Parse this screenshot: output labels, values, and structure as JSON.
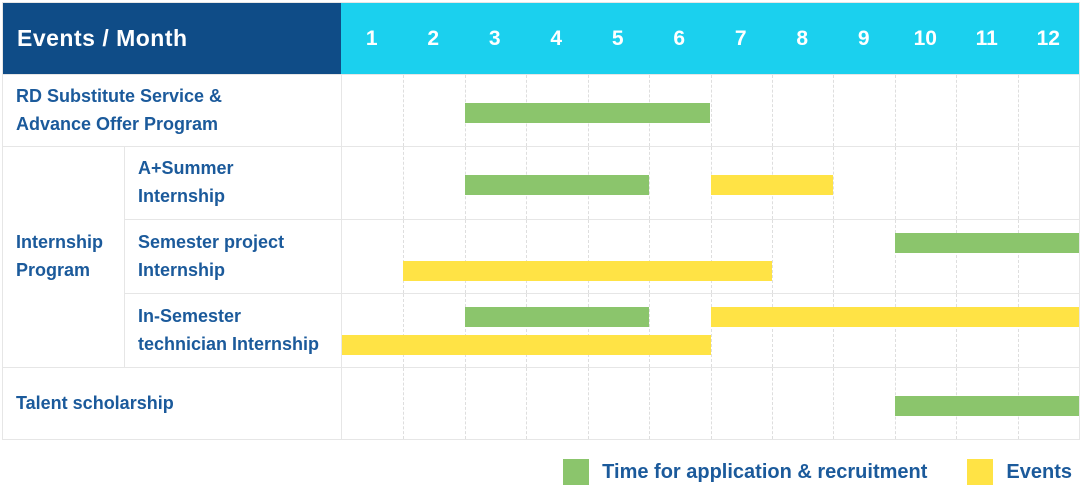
{
  "header": {
    "title": "Events / Month",
    "months": [
      "1",
      "2",
      "3",
      "4",
      "5",
      "6",
      "7",
      "8",
      "9",
      "10",
      "11",
      "12"
    ]
  },
  "group": {
    "label": "Internship Program",
    "label_lines": [
      "Internship",
      "Program"
    ]
  },
  "colors": {
    "header_bg": "#0f4c87",
    "month_header_bg": "#1bd0ee",
    "recruitment": "#8bc56c",
    "events": "#ffe345",
    "label_text": "#1b5a9b"
  },
  "legend": [
    {
      "type": "recruitment",
      "label": "Time for application & recruitment",
      "color": "#8bc56c"
    },
    {
      "type": "event",
      "label": "Events",
      "color": "#ffe345"
    }
  ],
  "chart_data": {
    "type": "gantt",
    "title": "Events / Month",
    "x_axis": {
      "label": "Month",
      "ticks": [
        "1",
        "2",
        "3",
        "4",
        "5",
        "6",
        "7",
        "8",
        "9",
        "10",
        "11",
        "12"
      ],
      "range": [
        1,
        12
      ]
    },
    "legend_position": "bottom-right",
    "series_legend": [
      {
        "name": "Time for application & recruitment",
        "color": "#8bc56c"
      },
      {
        "name": "Events",
        "color": "#ffe345"
      }
    ],
    "tasks": [
      {
        "group": null,
        "name": "RD Substitute Service & Advance Offer Program",
        "label_lines": [
          "RD Substitute Service &",
          "Advance Offer Program"
        ],
        "bars": [
          {
            "type": "recruitment",
            "series": "Time for application & recruitment",
            "start_month": 3,
            "end_month": 6,
            "lane": "center"
          }
        ]
      },
      {
        "group": "Internship Program",
        "name": "A+Summer Internship",
        "label_lines": [
          "A+Summer",
          "Internship"
        ],
        "bars": [
          {
            "type": "recruitment",
            "series": "Time for application & recruitment",
            "start_month": 3,
            "end_month": 5,
            "lane": "center"
          },
          {
            "type": "event",
            "series": "Events",
            "start_month": 7,
            "end_month": 8,
            "lane": "center"
          }
        ]
      },
      {
        "group": "Internship Program",
        "name": "Semester project Internship",
        "label_lines": [
          "Semester project",
          "Internship"
        ],
        "bars": [
          {
            "type": "recruitment",
            "series": "Time for application & recruitment",
            "start_month": 10,
            "end_month": 12,
            "lane": "top"
          },
          {
            "type": "event",
            "series": "Events",
            "start_month": 2,
            "end_month": 7,
            "lane": "bottom"
          }
        ]
      },
      {
        "group": "Internship Program",
        "name": "In-Semester technician Internship",
        "label_lines": [
          "In-Semester",
          "technician Internship"
        ],
        "bars": [
          {
            "type": "recruitment",
            "series": "Time for application & recruitment",
            "start_month": 3,
            "end_month": 5,
            "lane": "top"
          },
          {
            "type": "event",
            "series": "Events",
            "start_month": 7,
            "end_month": 12,
            "lane": "top"
          },
          {
            "type": "event",
            "series": "Events",
            "start_month": 1,
            "end_month": 6,
            "lane": "bottom"
          }
        ]
      },
      {
        "group": null,
        "name": "Talent scholarship",
        "label_lines": [
          "Talent scholarship"
        ],
        "bars": [
          {
            "type": "recruitment",
            "series": "Time for application & recruitment",
            "start_month": 10,
            "end_month": 12,
            "lane": "center"
          }
        ]
      }
    ]
  }
}
